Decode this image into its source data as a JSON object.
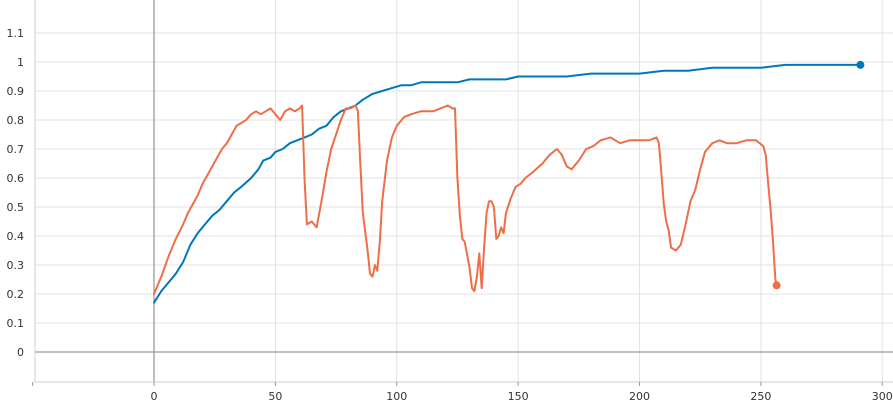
{
  "chart_data": {
    "type": "line",
    "title": "",
    "xlabel": "",
    "ylabel": "",
    "xlim": [
      -50,
      305
    ],
    "ylim": [
      -0.1,
      1.2
    ],
    "grid": true,
    "legend": "none",
    "x_ticks": [
      0,
      50,
      100,
      150,
      200,
      250,
      300
    ],
    "x_tick_labels": [
      "0",
      "50",
      "100",
      "150",
      "200",
      "250",
      "300"
    ],
    "y_ticks": [
      0,
      0.1,
      0.2,
      0.3,
      0.4,
      0.5,
      0.6,
      0.7,
      0.8,
      0.9,
      1.0,
      1.1
    ],
    "y_tick_labels": [
      "0",
      "0.1",
      "0.2",
      "0.3",
      "0.4",
      "0.5",
      "0.6",
      "0.7",
      "0.8",
      "0.9",
      "1",
      "1.1"
    ],
    "series": [
      {
        "color": "#0077bb",
        "points": [
          [
            0,
            0.17
          ],
          [
            3,
            0.21
          ],
          [
            6,
            0.24
          ],
          [
            9,
            0.27
          ],
          [
            12,
            0.31
          ],
          [
            15,
            0.37
          ],
          [
            18,
            0.41
          ],
          [
            21,
            0.44
          ],
          [
            24,
            0.47
          ],
          [
            27,
            0.49
          ],
          [
            30,
            0.52
          ],
          [
            33,
            0.55
          ],
          [
            36,
            0.57
          ],
          [
            40,
            0.6
          ],
          [
            43,
            0.63
          ],
          [
            45,
            0.66
          ],
          [
            48,
            0.67
          ],
          [
            50,
            0.69
          ],
          [
            53,
            0.7
          ],
          [
            56,
            0.72
          ],
          [
            59,
            0.73
          ],
          [
            62,
            0.74
          ],
          [
            65,
            0.75
          ],
          [
            68,
            0.77
          ],
          [
            71,
            0.78
          ],
          [
            74,
            0.81
          ],
          [
            77,
            0.83
          ],
          [
            80,
            0.84
          ],
          [
            83,
            0.85
          ],
          [
            86,
            0.87
          ],
          [
            90,
            0.89
          ],
          [
            94,
            0.9
          ],
          [
            98,
            0.91
          ],
          [
            102,
            0.92
          ],
          [
            106,
            0.92
          ],
          [
            110,
            0.93
          ],
          [
            115,
            0.93
          ],
          [
            120,
            0.93
          ],
          [
            125,
            0.93
          ],
          [
            130,
            0.94
          ],
          [
            135,
            0.94
          ],
          [
            140,
            0.94
          ],
          [
            145,
            0.94
          ],
          [
            150,
            0.95
          ],
          [
            160,
            0.95
          ],
          [
            170,
            0.95
          ],
          [
            180,
            0.96
          ],
          [
            190,
            0.96
          ],
          [
            200,
            0.96
          ],
          [
            210,
            0.97
          ],
          [
            220,
            0.97
          ],
          [
            230,
            0.98
          ],
          [
            240,
            0.98
          ],
          [
            245,
            0.98
          ],
          [
            250,
            0.98
          ],
          [
            260,
            0.99
          ],
          [
            270,
            0.99
          ],
          [
            280,
            0.99
          ],
          [
            291,
            0.99
          ]
        ]
      },
      {
        "color": "#ee6e48",
        "points": [
          [
            0,
            0.2
          ],
          [
            3,
            0.26
          ],
          [
            6,
            0.33
          ],
          [
            9,
            0.39
          ],
          [
            12,
            0.44
          ],
          [
            14,
            0.48
          ],
          [
            16,
            0.51
          ],
          [
            18,
            0.54
          ],
          [
            20,
            0.58
          ],
          [
            22,
            0.61
          ],
          [
            24,
            0.64
          ],
          [
            26,
            0.67
          ],
          [
            28,
            0.7
          ],
          [
            30,
            0.72
          ],
          [
            32,
            0.75
          ],
          [
            34,
            0.78
          ],
          [
            36,
            0.79
          ],
          [
            38,
            0.8
          ],
          [
            40,
            0.82
          ],
          [
            42,
            0.83
          ],
          [
            44,
            0.82
          ],
          [
            46,
            0.83
          ],
          [
            48,
            0.84
          ],
          [
            50,
            0.82
          ],
          [
            52,
            0.8
          ],
          [
            54,
            0.83
          ],
          [
            56,
            0.84
          ],
          [
            58,
            0.83
          ],
          [
            60,
            0.84
          ],
          [
            61,
            0.85
          ],
          [
            62,
            0.6
          ],
          [
            63,
            0.44
          ],
          [
            65,
            0.45
          ],
          [
            67,
            0.43
          ],
          [
            69,
            0.52
          ],
          [
            71,
            0.62
          ],
          [
            73,
            0.7
          ],
          [
            75,
            0.75
          ],
          [
            77,
            0.8
          ],
          [
            79,
            0.84
          ],
          [
            81,
            0.84
          ],
          [
            83,
            0.85
          ],
          [
            84,
            0.83
          ],
          [
            85,
            0.65
          ],
          [
            86,
            0.48
          ],
          [
            88,
            0.35
          ],
          [
            89,
            0.27
          ],
          [
            90,
            0.26
          ],
          [
            91,
            0.3
          ],
          [
            92,
            0.28
          ],
          [
            93,
            0.38
          ],
          [
            94,
            0.52
          ],
          [
            96,
            0.66
          ],
          [
            98,
            0.74
          ],
          [
            100,
            0.78
          ],
          [
            103,
            0.81
          ],
          [
            106,
            0.82
          ],
          [
            110,
            0.83
          ],
          [
            115,
            0.83
          ],
          [
            118,
            0.84
          ],
          [
            121,
            0.85
          ],
          [
            123,
            0.84
          ],
          [
            124,
            0.84
          ],
          [
            125,
            0.6
          ],
          [
            126,
            0.47
          ],
          [
            127,
            0.39
          ],
          [
            128,
            0.38
          ],
          [
            130,
            0.29
          ],
          [
            131,
            0.22
          ],
          [
            132,
            0.21
          ],
          [
            133,
            0.26
          ],
          [
            134,
            0.34
          ],
          [
            135,
            0.22
          ],
          [
            136,
            0.36
          ],
          [
            137,
            0.48
          ],
          [
            138,
            0.52
          ],
          [
            139,
            0.52
          ],
          [
            140,
            0.5
          ],
          [
            141,
            0.39
          ],
          [
            142,
            0.4
          ],
          [
            143,
            0.43
          ],
          [
            144,
            0.41
          ],
          [
            145,
            0.48
          ],
          [
            147,
            0.53
          ],
          [
            149,
            0.57
          ],
          [
            151,
            0.58
          ],
          [
            153,
            0.6
          ],
          [
            156,
            0.62
          ],
          [
            160,
            0.65
          ],
          [
            163,
            0.68
          ],
          [
            166,
            0.7
          ],
          [
            168,
            0.68
          ],
          [
            170,
            0.64
          ],
          [
            172,
            0.63
          ],
          [
            175,
            0.66
          ],
          [
            178,
            0.7
          ],
          [
            181,
            0.71
          ],
          [
            184,
            0.73
          ],
          [
            188,
            0.74
          ],
          [
            192,
            0.72
          ],
          [
            196,
            0.73
          ],
          [
            200,
            0.73
          ],
          [
            204,
            0.73
          ],
          [
            207,
            0.74
          ],
          [
            208,
            0.72
          ],
          [
            209,
            0.62
          ],
          [
            210,
            0.51
          ],
          [
            211,
            0.45
          ],
          [
            212,
            0.42
          ],
          [
            213,
            0.36
          ],
          [
            215,
            0.35
          ],
          [
            217,
            0.37
          ],
          [
            219,
            0.44
          ],
          [
            221,
            0.52
          ],
          [
            223,
            0.56
          ],
          [
            225,
            0.63
          ],
          [
            227,
            0.69
          ],
          [
            230,
            0.72
          ],
          [
            233,
            0.73
          ],
          [
            236,
            0.72
          ],
          [
            240,
            0.72
          ],
          [
            244,
            0.73
          ],
          [
            248,
            0.73
          ],
          [
            251,
            0.71
          ],
          [
            252,
            0.68
          ],
          [
            253,
            0.58
          ],
          [
            254,
            0.49
          ],
          [
            255,
            0.38
          ],
          [
            256,
            0.25
          ],
          [
            256.5,
            0.23
          ]
        ]
      }
    ]
  }
}
